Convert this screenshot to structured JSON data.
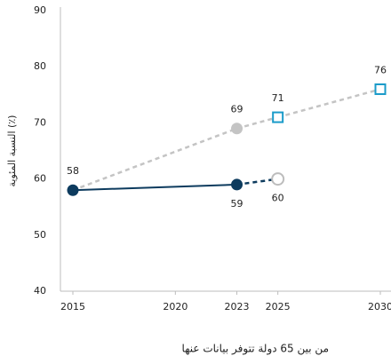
{
  "chart_data": {
    "type": "line",
    "y_label": "النسبة المئوية (٪)",
    "note": "من بين 65 دولة تتوفر بيانات عنها",
    "xlim": [
      2015,
      2030
    ],
    "xticks": [
      2015,
      2020,
      2023,
      2025,
      2030
    ],
    "ylim": [
      40,
      90
    ],
    "yticks": [
      40,
      50,
      60,
      70,
      80,
      90
    ],
    "series": [
      {
        "color": "#c4c4c4",
        "x": [
          2015,
          2023,
          2025,
          2030
        ],
        "values": [
          58,
          69,
          71,
          76
        ],
        "value_labels": [
          "58",
          "69",
          "71",
          "76"
        ],
        "label_side": [
          "above",
          "above",
          "above",
          "above"
        ],
        "dashed_from": 0,
        "markers": [
          "none",
          "circle",
          "hollow-square",
          "hollow-square"
        ],
        "marker_colors": [
          "#c4c4c4",
          "#c4c4c4",
          "#1a9bc9",
          "#1a9bc9"
        ]
      },
      {
        "color": "#0d3b5e",
        "x": [
          2015,
          2023,
          2025
        ],
        "values": [
          58,
          59,
          60
        ],
        "value_labels": [
          null,
          "59",
          "60"
        ],
        "label_side": [
          "below",
          "below",
          "below"
        ],
        "dashed_from": 1,
        "markers": [
          "circle",
          "circle",
          "hollow-circle"
        ],
        "marker_colors": [
          "#0d3b5e",
          "#0d3b5e",
          "#bdbdbd"
        ]
      }
    ]
  }
}
